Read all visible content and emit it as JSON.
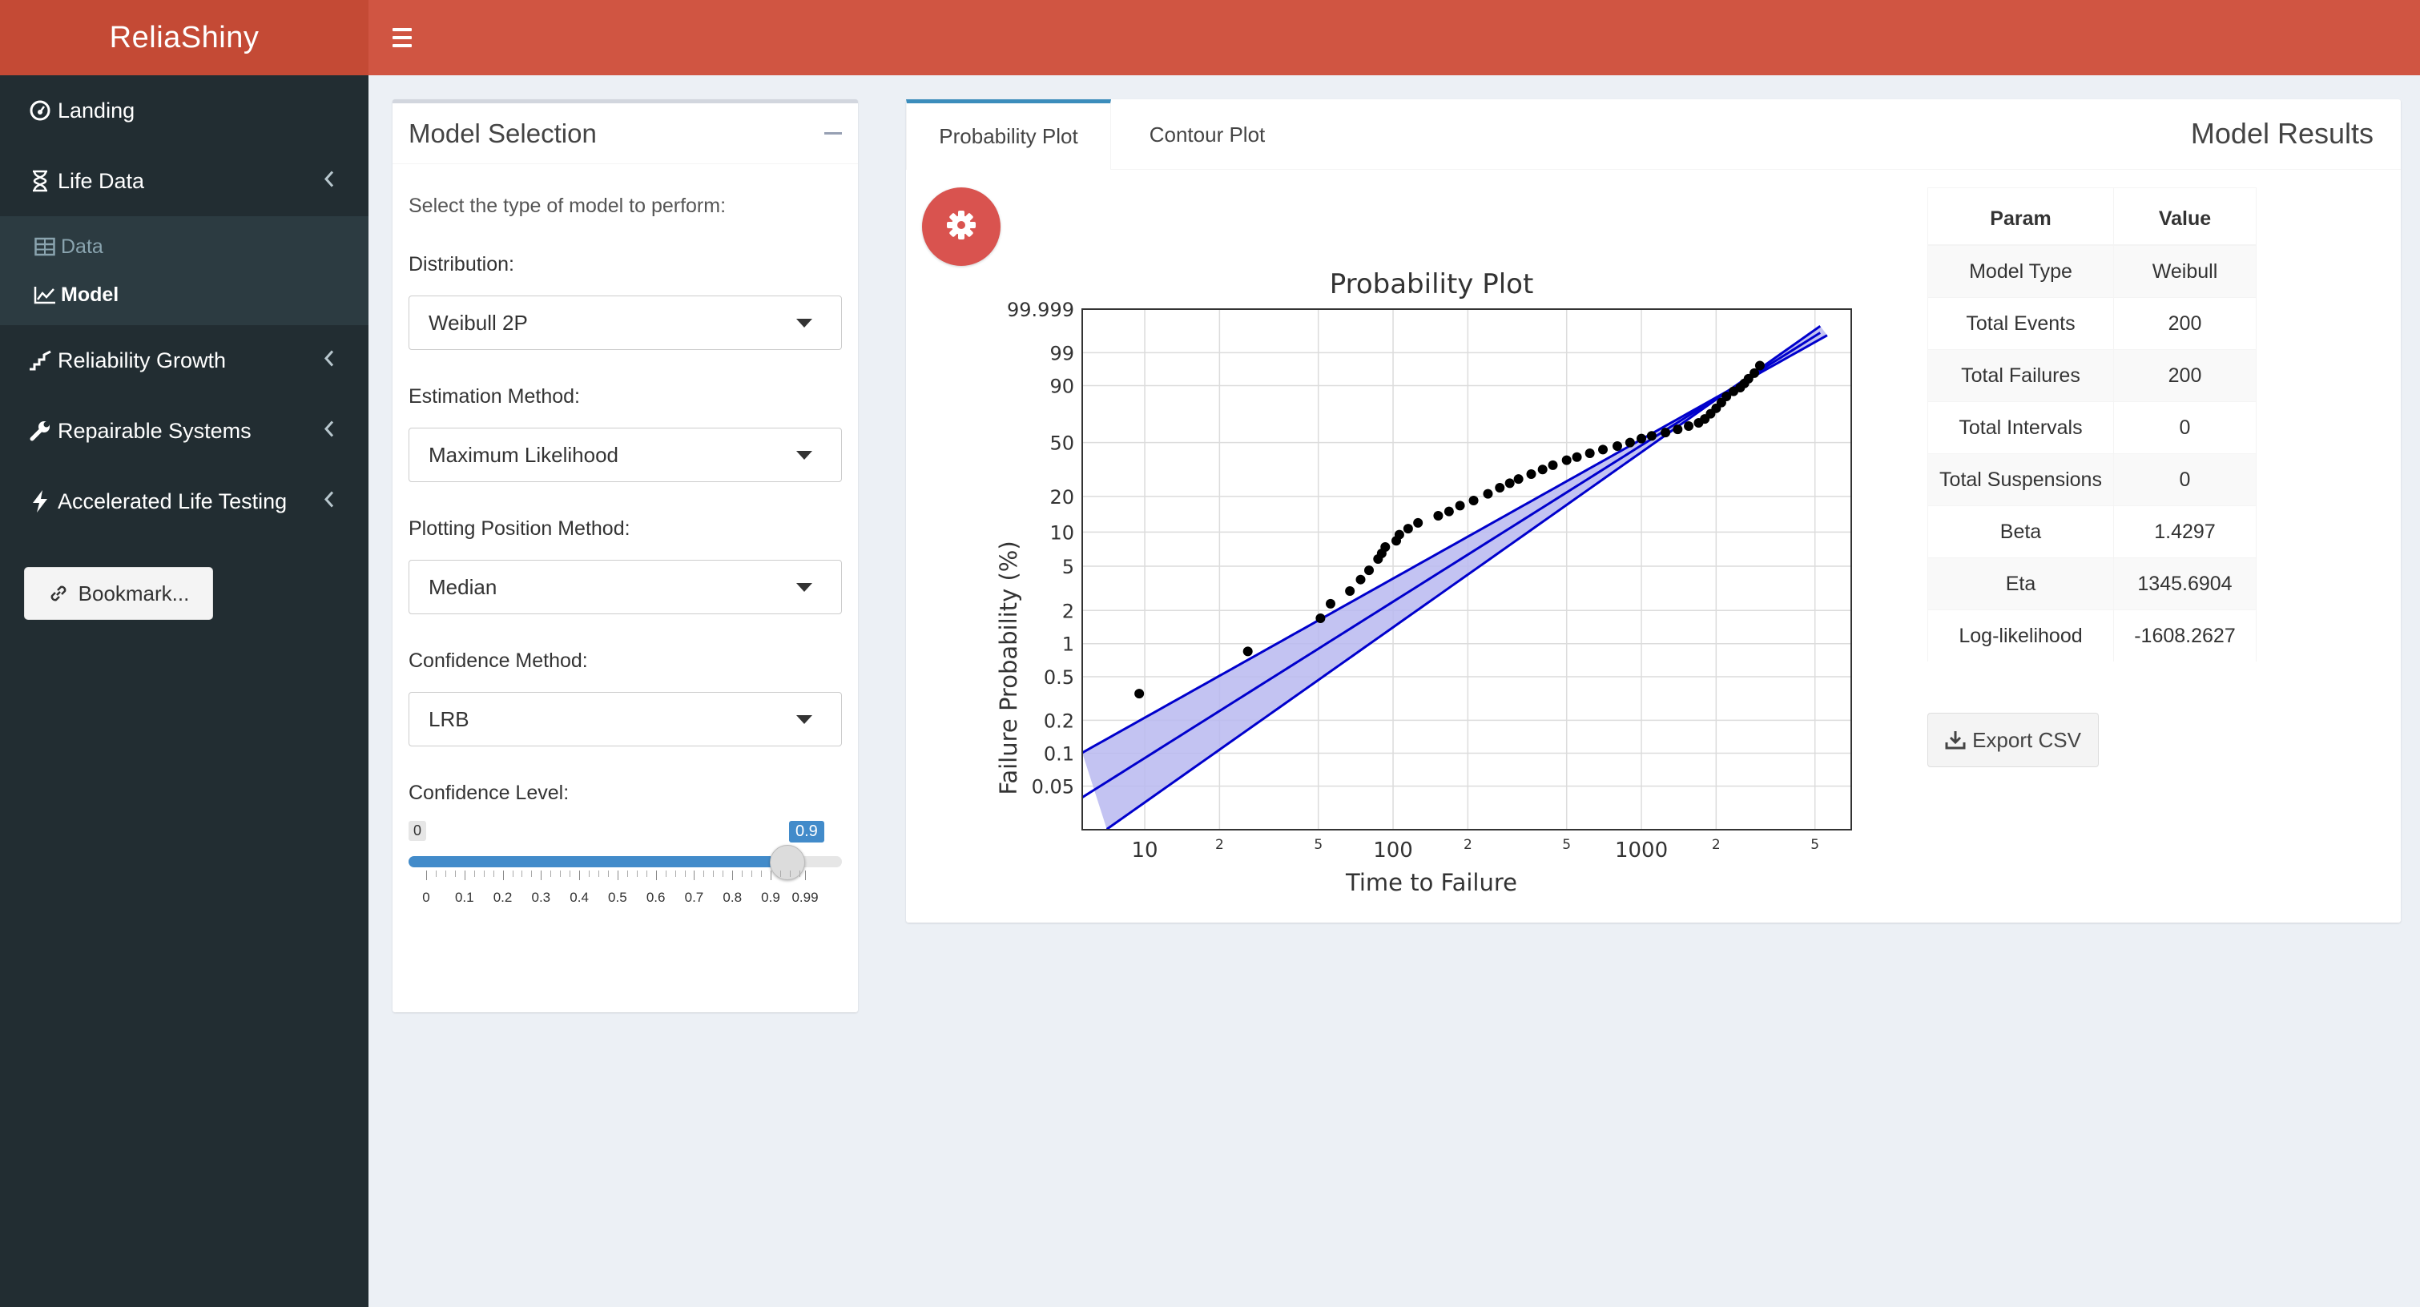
{
  "app": {
    "title": "ReliaShiny"
  },
  "sidebar": {
    "items": [
      {
        "label": "Landing",
        "icon": "dashboard-icon"
      },
      {
        "label": "Life Data",
        "icon": "hourglass-icon"
      },
      {
        "label": "Data",
        "icon": "table-icon"
      },
      {
        "label": "Model",
        "icon": "line-chart-icon"
      },
      {
        "label": "Reliability Growth",
        "icon": "growth-icon"
      },
      {
        "label": "Repairable Systems",
        "icon": "wrench-icon"
      },
      {
        "label": "Accelerated Life Testing",
        "icon": "bolt-icon"
      }
    ],
    "bookmark_label": "Bookmark..."
  },
  "model_selection": {
    "title": "Model Selection",
    "help": "Select the type of model to perform:",
    "distribution": {
      "label": "Distribution:",
      "value": "Weibull 2P"
    },
    "estimation": {
      "label": "Estimation Method:",
      "value": "Maximum Likelihood"
    },
    "plotting": {
      "label": "Plotting Position Method:",
      "value": "Median"
    },
    "confidence_method": {
      "label": "Confidence Method:",
      "value": "LRB"
    },
    "confidence_level": {
      "label": "Confidence Level:",
      "min_label": "0",
      "value_label": "0.9",
      "value": 0.9,
      "tick_labels": [
        "0",
        "0.1",
        "0.2",
        "0.3",
        "0.4",
        "0.5",
        "0.6",
        "0.7",
        "0.8",
        "0.9",
        "0.99"
      ]
    }
  },
  "tabs": [
    "Probability Plot",
    "Contour Plot"
  ],
  "results": {
    "title": "Model Results",
    "headers": [
      "Param",
      "Value"
    ],
    "rows": [
      {
        "param": "Model Type",
        "value": "Weibull"
      },
      {
        "param": "Total Events",
        "value": "200"
      },
      {
        "param": "Total Failures",
        "value": "200"
      },
      {
        "param": "Total Intervals",
        "value": "0"
      },
      {
        "param": "Total Suspensions",
        "value": "0"
      },
      {
        "param": "Beta",
        "value": "1.4297"
      },
      {
        "param": "Eta",
        "value": "1345.6904"
      },
      {
        "param": "Log-likelihood",
        "value": "-1608.2627"
      }
    ],
    "export_label": "Export CSV"
  },
  "colors": {
    "header": "#d05542",
    "logo_bg": "#c44a35",
    "sidebar": "#222d32",
    "accent": "#3c8dbc",
    "slider": "#428bca",
    "gear_button": "#d9534f",
    "fit_line": "#0000cc",
    "band": "#b8b8f0"
  },
  "chart_data": {
    "type": "scatter",
    "title": "Probability Plot",
    "xlabel": "Time to Failure",
    "ylabel": "Failure Probability (%)",
    "x_scale": "log",
    "y_scale": "weibull",
    "xlim": [
      5.6,
      7000
    ],
    "ylim": [
      0.02,
      99.999
    ],
    "x_tick_labels": [
      "10",
      "2",
      "5",
      "100",
      "2",
      "5",
      "1000",
      "2",
      "5"
    ],
    "y_tick_labels": [
      "99.999",
      "99",
      "90",
      "50",
      "20",
      "10",
      "5",
      "2",
      "1",
      "0.5",
      "0.2",
      "0.1",
      "0.05"
    ],
    "grid": true,
    "points": [
      [
        9.5,
        0.35
      ],
      [
        26,
        0.85
      ],
      [
        51,
        1.7
      ],
      [
        56,
        2.3
      ],
      [
        67,
        3.0
      ],
      [
        74,
        3.8
      ],
      [
        80,
        4.6
      ],
      [
        87,
        5.8
      ],
      [
        90,
        6.5
      ],
      [
        93,
        7.4
      ],
      [
        103,
        8.4
      ],
      [
        106,
        9.5
      ],
      [
        115,
        10.7
      ],
      [
        126,
        12.0
      ],
      [
        152,
        13.8
      ],
      [
        168,
        15.0
      ],
      [
        186,
        16.8
      ],
      [
        211,
        18.5
      ],
      [
        241,
        21.0
      ],
      [
        269,
        23.5
      ],
      [
        295,
        25.5
      ],
      [
        320,
        27.5
      ],
      [
        360,
        30.0
      ],
      [
        400,
        32.5
      ],
      [
        440,
        35.0
      ],
      [
        500,
        38.0
      ],
      [
        550,
        40.0
      ],
      [
        620,
        42.5
      ],
      [
        700,
        45.0
      ],
      [
        800,
        47.5
      ],
      [
        900,
        50.0
      ],
      [
        1000,
        53.0
      ],
      [
        1100,
        55.0
      ],
      [
        1250,
        57.5
      ],
      [
        1400,
        60.0
      ],
      [
        1550,
        62.5
      ],
      [
        1700,
        65.0
      ],
      [
        1800,
        68.0
      ],
      [
        1900,
        72.0
      ],
      [
        2000,
        76.0
      ],
      [
        2100,
        80.0
      ],
      [
        2200,
        84.0
      ],
      [
        2350,
        87.0
      ],
      [
        2500,
        89.0
      ],
      [
        2600,
        91.0
      ],
      [
        2700,
        93.0
      ],
      [
        2850,
        95.0
      ],
      [
        3000,
        97.0
      ]
    ],
    "fit": {
      "beta": 1.4297,
      "eta": 1345.6904
    },
    "confidence_level": 0.9
  }
}
